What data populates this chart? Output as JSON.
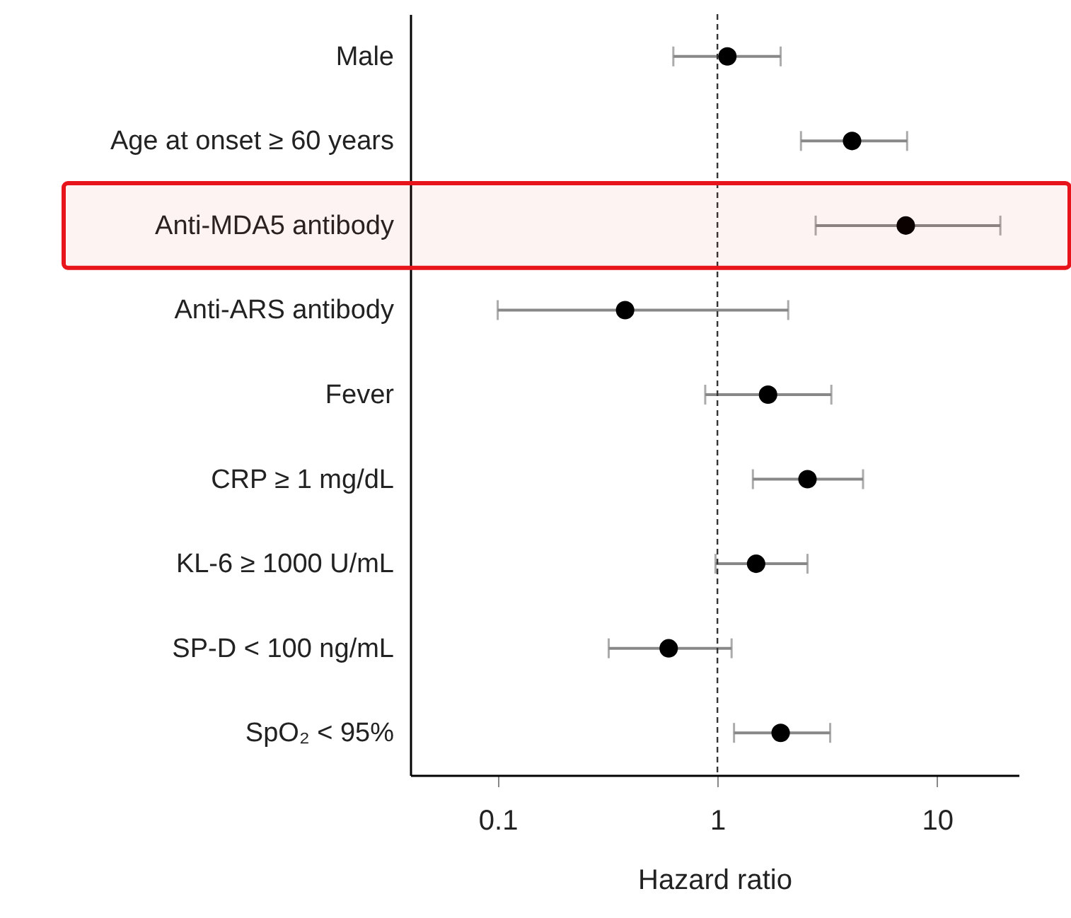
{
  "chart_data": {
    "type": "scatter",
    "xlabel": "Hazard ratio",
    "categories": [
      "Male",
      "Age at onset ≥  60 years",
      "Anti-MDA5 antibody",
      "Anti-ARS antibody",
      "Fever",
      "CRP ≥ 1 mg/dL",
      "KL-6 ≥ 1000 U/mL",
      "SP-D < 100 ng/mL",
      "SpO₂ < 95%"
    ],
    "series": [
      {
        "color": "#000000",
        "values": [
          1.11,
          4.1,
          7.2,
          0.38,
          1.7,
          2.57,
          1.5,
          0.6,
          1.94
        ],
        "errors": [
          [
            0.63,
            1.94
          ],
          [
            2.4,
            7.3
          ],
          [
            2.8,
            19.4
          ],
          [
            0.1,
            2.1
          ],
          [
            0.88,
            3.3
          ],
          [
            1.45,
            4.6
          ],
          [
            0.98,
            2.57
          ],
          [
            0.32,
            1.16
          ],
          [
            1.19,
            3.26
          ]
        ]
      }
    ],
    "orientation": "horizontal",
    "log": "x",
    "xlim": [
      0.04,
      23.5
    ],
    "xticks": [
      0.1,
      1,
      10
    ],
    "marker": "circle",
    "grid": false,
    "ref_lines": [
      {
        "axis": "x",
        "value": 1,
        "line_style": "dashed",
        "color": "#333333"
      }
    ],
    "bands": [
      {
        "axis": "y",
        "from": "Anti-MDA5 antibody",
        "to": "Anti-MDA5 antibody",
        "color": "#e8141b"
      }
    ]
  }
}
